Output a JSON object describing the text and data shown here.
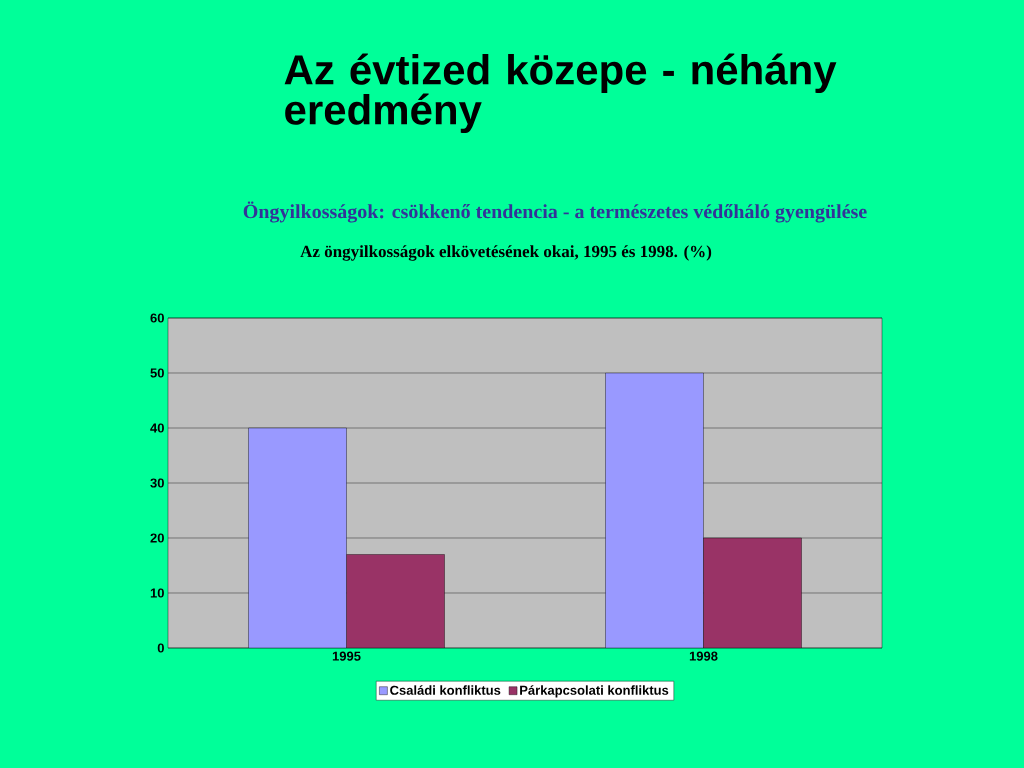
{
  "chart_data": {
    "type": "bar",
    "title": "Az öngyilkosságok elkövetésének okai, 1995 és 1998. (%)",
    "subtitle": "Öngyilkosságok: csökkenő tendencia - a természetes védőháló gyengülése",
    "annotations": [
      "Az évtized közepe - néhány eredmény"
    ],
    "categories": [
      "1995",
      "1998"
    ],
    "series": [
      {
        "name": "Családi konfliktus",
        "color": "#9999ff",
        "values": [
          40,
          50
        ]
      },
      {
        "name": "Párkapcsolati konfliktus",
        "color": "#993366",
        "values": [
          17,
          20
        ]
      }
    ],
    "ylim": [
      0,
      60
    ],
    "yticks": [
      0,
      10,
      20,
      30,
      40,
      50,
      60
    ],
    "grid": "y",
    "legend": "bottom"
  }
}
